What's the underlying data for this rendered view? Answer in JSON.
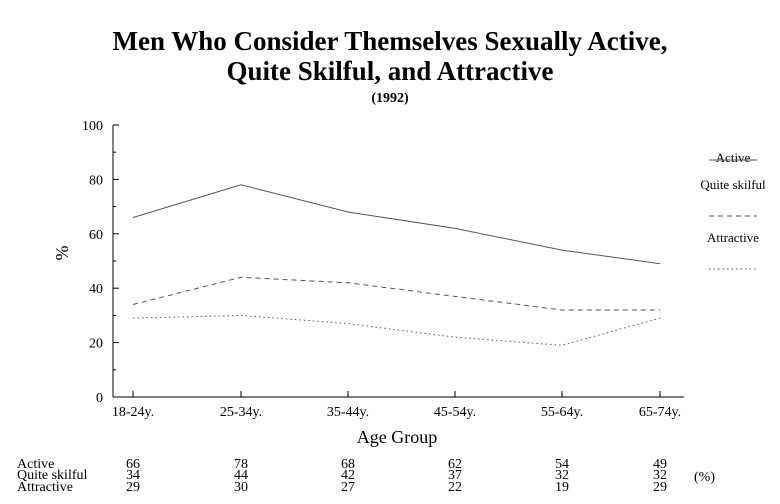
{
  "chart_data": {
    "type": "line",
    "title_line1": "Men Who Consider Themselves Sexually Active,",
    "title_line2": "Quite Skilful, and Attractive",
    "subtitle": "(1992)",
    "xlabel": "Age Group",
    "ylabel": "%",
    "ylim": [
      0,
      100
    ],
    "yticks": [
      "0",
      "20",
      "40",
      "60",
      "80",
      "100"
    ],
    "categories": [
      "18-24y.",
      "25-34y.",
      "35-44y.",
      "45-54y.",
      "55-64y.",
      "65-74y."
    ],
    "legend_placement": "right",
    "grid": false,
    "series": [
      {
        "name": "Active",
        "values": [
          66,
          78,
          68,
          62,
          54,
          49
        ],
        "style": "solid",
        "color": "#555555"
      },
      {
        "name": "Quite skilful",
        "values": [
          34,
          44,
          42,
          37,
          32,
          32
        ],
        "style": "dashed",
        "color": "#555555"
      },
      {
        "name": "Attractive",
        "values": [
          29,
          30,
          27,
          22,
          19,
          29
        ],
        "style": "dotted",
        "color": "#555555"
      }
    ],
    "table": {
      "row_labels": [
        "Active",
        "Quite skilful",
        "Attractive"
      ],
      "rows": [
        [
          "66",
          "78",
          "68",
          "62",
          "54",
          "49"
        ],
        [
          "34",
          "44",
          "42",
          "37",
          "32",
          "32"
        ],
        [
          "29",
          "30",
          "27",
          "22",
          "19",
          "29"
        ]
      ],
      "unit": "(%)"
    }
  }
}
